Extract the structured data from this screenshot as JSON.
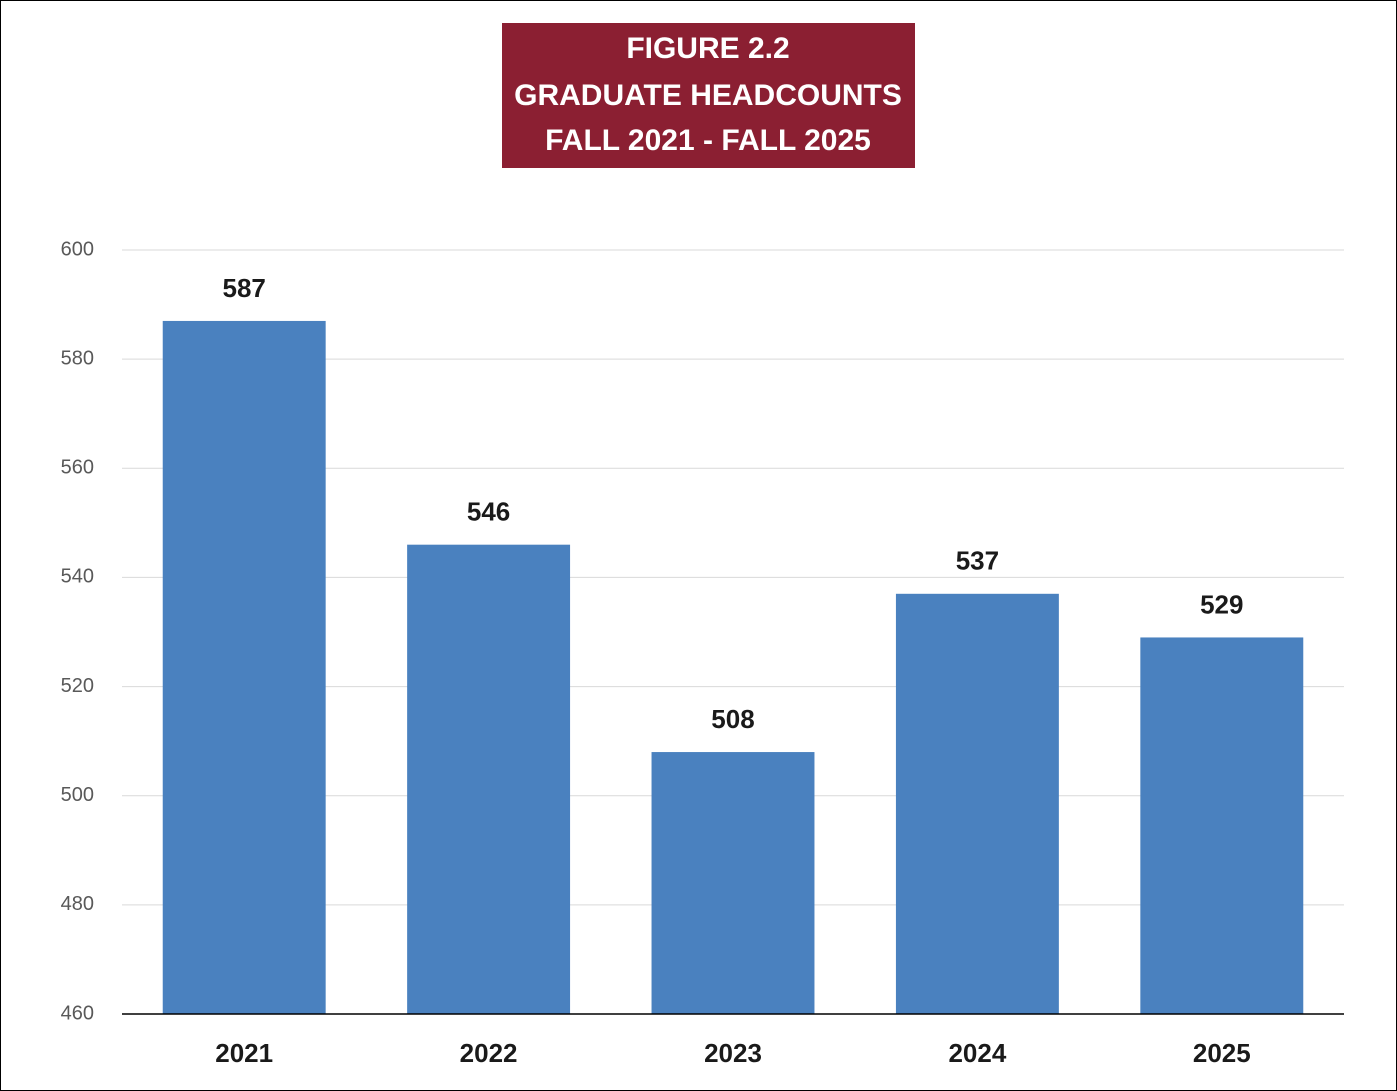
{
  "chart_data": {
    "type": "bar",
    "title": [
      "FIGURE  2.2",
      "GRADUATE HEADCOUNTS",
      "FALL 2021 - FALL 2025"
    ],
    "categories": [
      "2021",
      "2022",
      "2023",
      "2024",
      "2025"
    ],
    "values": [
      587,
      546,
      508,
      537,
      529
    ],
    "color": "#4a81bf",
    "ylim": [
      460,
      600
    ],
    "yticks": [
      460,
      480,
      500,
      520,
      540,
      560,
      580,
      600
    ],
    "grid": true
  }
}
